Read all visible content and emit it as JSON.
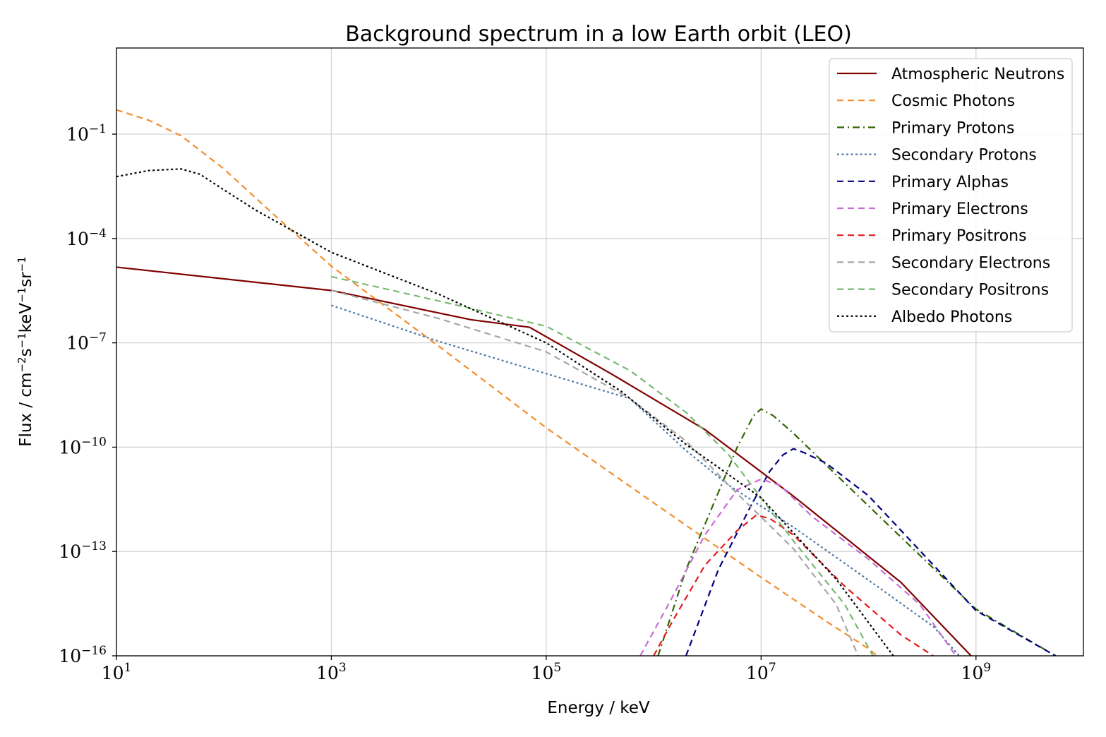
{
  "chart_data": {
    "type": "line",
    "title": "Background spectrum in a low Earth orbit (LEO)",
    "xlabel": "Energy / keV",
    "ylabel": {
      "parts": [
        {
          "text": "Flux / cm",
          "sup": false
        },
        {
          "text": "−2",
          "sup": true
        },
        {
          "text": "s",
          "sup": false
        },
        {
          "text": "−1",
          "sup": true
        },
        {
          "text": "keV",
          "sup": false
        },
        {
          "text": "−1",
          "sup": true
        },
        {
          "text": "sr",
          "sup": false
        },
        {
          "text": "−1",
          "sup": true
        }
      ]
    },
    "x_scale": "log",
    "y_scale": "log",
    "xlim": [
      10,
      10000000000
    ],
    "ylim": [
      1e-16,
      30
    ],
    "grid": true,
    "legend_position": "top-right",
    "x_ticks": [
      {
        "value": 10,
        "base": "10",
        "exp": "1"
      },
      {
        "value": 1000,
        "base": "10",
        "exp": "3"
      },
      {
        "value": 100000,
        "base": "10",
        "exp": "5"
      },
      {
        "value": 10000000,
        "base": "10",
        "exp": "7"
      },
      {
        "value": 1000000000,
        "base": "10",
        "exp": "9"
      }
    ],
    "y_ticks": [
      {
        "value": 0.1,
        "base": "10",
        "exp": "−1"
      },
      {
        "value": 0.0001,
        "base": "10",
        "exp": "−4"
      },
      {
        "value": 1e-07,
        "base": "10",
        "exp": "−7"
      },
      {
        "value": 1e-10,
        "base": "10",
        "exp": "−10"
      },
      {
        "value": 1e-13,
        "base": "10",
        "exp": "−13"
      },
      {
        "value": 1e-16,
        "base": "10",
        "exp": "−16"
      }
    ],
    "series": [
      {
        "name": "Atmospheric Neutrons",
        "color": "#800000",
        "dash": "solid",
        "points": [
          [
            10,
            1.5e-05
          ],
          [
            1000,
            3.2e-06
          ],
          [
            20000,
            4.6e-07
          ],
          [
            70000,
            2.8e-07
          ],
          [
            400000,
            1.3e-08
          ],
          [
            3000000,
            3.2e-10
          ],
          [
            20000000,
            3.9e-12
          ],
          [
            200000000,
            1.3e-14
          ],
          [
            900000000,
            1e-16
          ]
        ]
      },
      {
        "name": "Cosmic Photons",
        "color": "#f28e2b",
        "dash": "dashed",
        "points": [
          [
            10,
            0.5
          ],
          [
            20,
            0.25
          ],
          [
            40,
            0.09
          ],
          [
            100,
            0.01
          ],
          [
            300,
            0.00045
          ],
          [
            1000,
            1.6e-05
          ],
          [
            10000,
            8e-08
          ],
          [
            100000,
            3.6e-10
          ],
          [
            1000000,
            2.5e-12
          ],
          [
            10000000,
            1.8e-14
          ],
          [
            40000000,
            1e-15
          ],
          [
            100000000,
            1.6e-16
          ],
          [
            120000000,
            1e-16
          ]
        ]
      },
      {
        "name": "Primary Protons",
        "color": "#336600",
        "dash": "dashdot",
        "points": [
          [
            1100000,
            1e-16
          ],
          [
            2000000,
            3e-14
          ],
          [
            4000000,
            5e-12
          ],
          [
            6000000,
            1e-10
          ],
          [
            8500000,
            8e-10
          ],
          [
            10000000,
            1.25e-09
          ],
          [
            13000000,
            8e-10
          ],
          [
            20000000,
            2.5e-10
          ],
          [
            50000000,
            1.6e-11
          ],
          [
            200000000,
            2.6e-13
          ],
          [
            1000000000,
            2.2e-15
          ],
          [
            5500000000,
            1e-16
          ]
        ]
      },
      {
        "name": "Secondary Protons",
        "color": "#4e79a7",
        "dash": "dotted",
        "points": [
          [
            1000,
            1.2e-06
          ],
          [
            10000,
            1.1e-07
          ],
          [
            100000,
            1.3e-08
          ],
          [
            600000,
            2.5e-09
          ],
          [
            2000000,
            8e-11
          ],
          [
            5000000,
            8e-12
          ],
          [
            20000000,
            5e-13
          ],
          [
            100000000,
            1.5e-14
          ],
          [
            400000000,
            7e-16
          ],
          [
            700000000,
            1e-16
          ]
        ]
      },
      {
        "name": "Primary Alphas",
        "color": "#000080",
        "dash": "dashed",
        "points": [
          [
            2000000,
            1e-16
          ],
          [
            4000000,
            3e-14
          ],
          [
            8000000,
            2e-12
          ],
          [
            12000000,
            2e-11
          ],
          [
            16000000,
            6e-11
          ],
          [
            20000000,
            9e-11
          ],
          [
            25000000,
            7e-11
          ],
          [
            40000000,
            3.5e-11
          ],
          [
            100000000,
            4e-12
          ],
          [
            1000000000,
            2e-15
          ],
          [
            5500000000,
            1e-16
          ]
        ]
      },
      {
        "name": "Primary Electrons",
        "color": "#c86dd7",
        "dash": "dashed",
        "points": [
          [
            750000,
            1e-16
          ],
          [
            1500000,
            5e-15
          ],
          [
            3000000,
            3e-13
          ],
          [
            6000000,
            6e-12
          ],
          [
            10000000,
            1.2e-11
          ],
          [
            15000000,
            8e-12
          ],
          [
            30000000,
            1e-12
          ],
          [
            100000000,
            6e-14
          ],
          [
            300000000,
            3e-15
          ],
          [
            650000000,
            1e-16
          ]
        ]
      },
      {
        "name": "Primary Positrons",
        "color": "#e41a1c",
        "dash": "dashed",
        "points": [
          [
            1000000,
            1e-16
          ],
          [
            1500000,
            1e-15
          ],
          [
            3000000,
            4e-14
          ],
          [
            6000000,
            4e-13
          ],
          [
            9000000,
            1.1e-12
          ],
          [
            12000000,
            9e-13
          ],
          [
            20000000,
            3e-13
          ],
          [
            60000000,
            1e-14
          ],
          [
            200000000,
            4e-16
          ],
          [
            400000000,
            1e-16
          ]
        ]
      },
      {
        "name": "Secondary Electrons",
        "color": "#a6a6a6",
        "dash": "dashed",
        "points": [
          [
            1000,
            3.2e-06
          ],
          [
            10000,
            5e-07
          ],
          [
            100000,
            5.5e-08
          ],
          [
            600000,
            2.5e-09
          ],
          [
            2000000,
            1.5e-10
          ],
          [
            5000000,
            8e-12
          ],
          [
            20000000,
            1.2e-13
          ],
          [
            50000000,
            3e-15
          ],
          [
            80000000,
            1e-16
          ]
        ]
      },
      {
        "name": "Secondary Positrons",
        "color": "#76b970",
        "dash": "dashed",
        "points": [
          [
            1000,
            8e-06
          ],
          [
            10000,
            1.6e-06
          ],
          [
            100000,
            3e-07
          ],
          [
            600000,
            1.6e-08
          ],
          [
            2000000,
            1e-09
          ],
          [
            5000000,
            6e-11
          ],
          [
            20000000,
            2e-13
          ],
          [
            60000000,
            3e-15
          ],
          [
            110000000,
            1e-16
          ]
        ]
      },
      {
        "name": "Albedo Photons",
        "color": "#000000",
        "dash": "dotted",
        "points": [
          [
            10,
            0.006
          ],
          [
            20,
            0.009
          ],
          [
            40,
            0.01
          ],
          [
            60,
            0.007
          ],
          [
            100,
            0.0025
          ],
          [
            200,
            0.00064
          ],
          [
            1000,
            4e-05
          ],
          [
            10000,
            2.5e-06
          ],
          [
            100000,
            1e-07
          ],
          [
            500000,
            4e-09
          ],
          [
            2000000,
            1.2e-10
          ],
          [
            10000000,
            3.5e-12
          ],
          [
            50000000,
            1.6e-14
          ],
          [
            170000000,
            1e-16
          ]
        ]
      }
    ]
  }
}
